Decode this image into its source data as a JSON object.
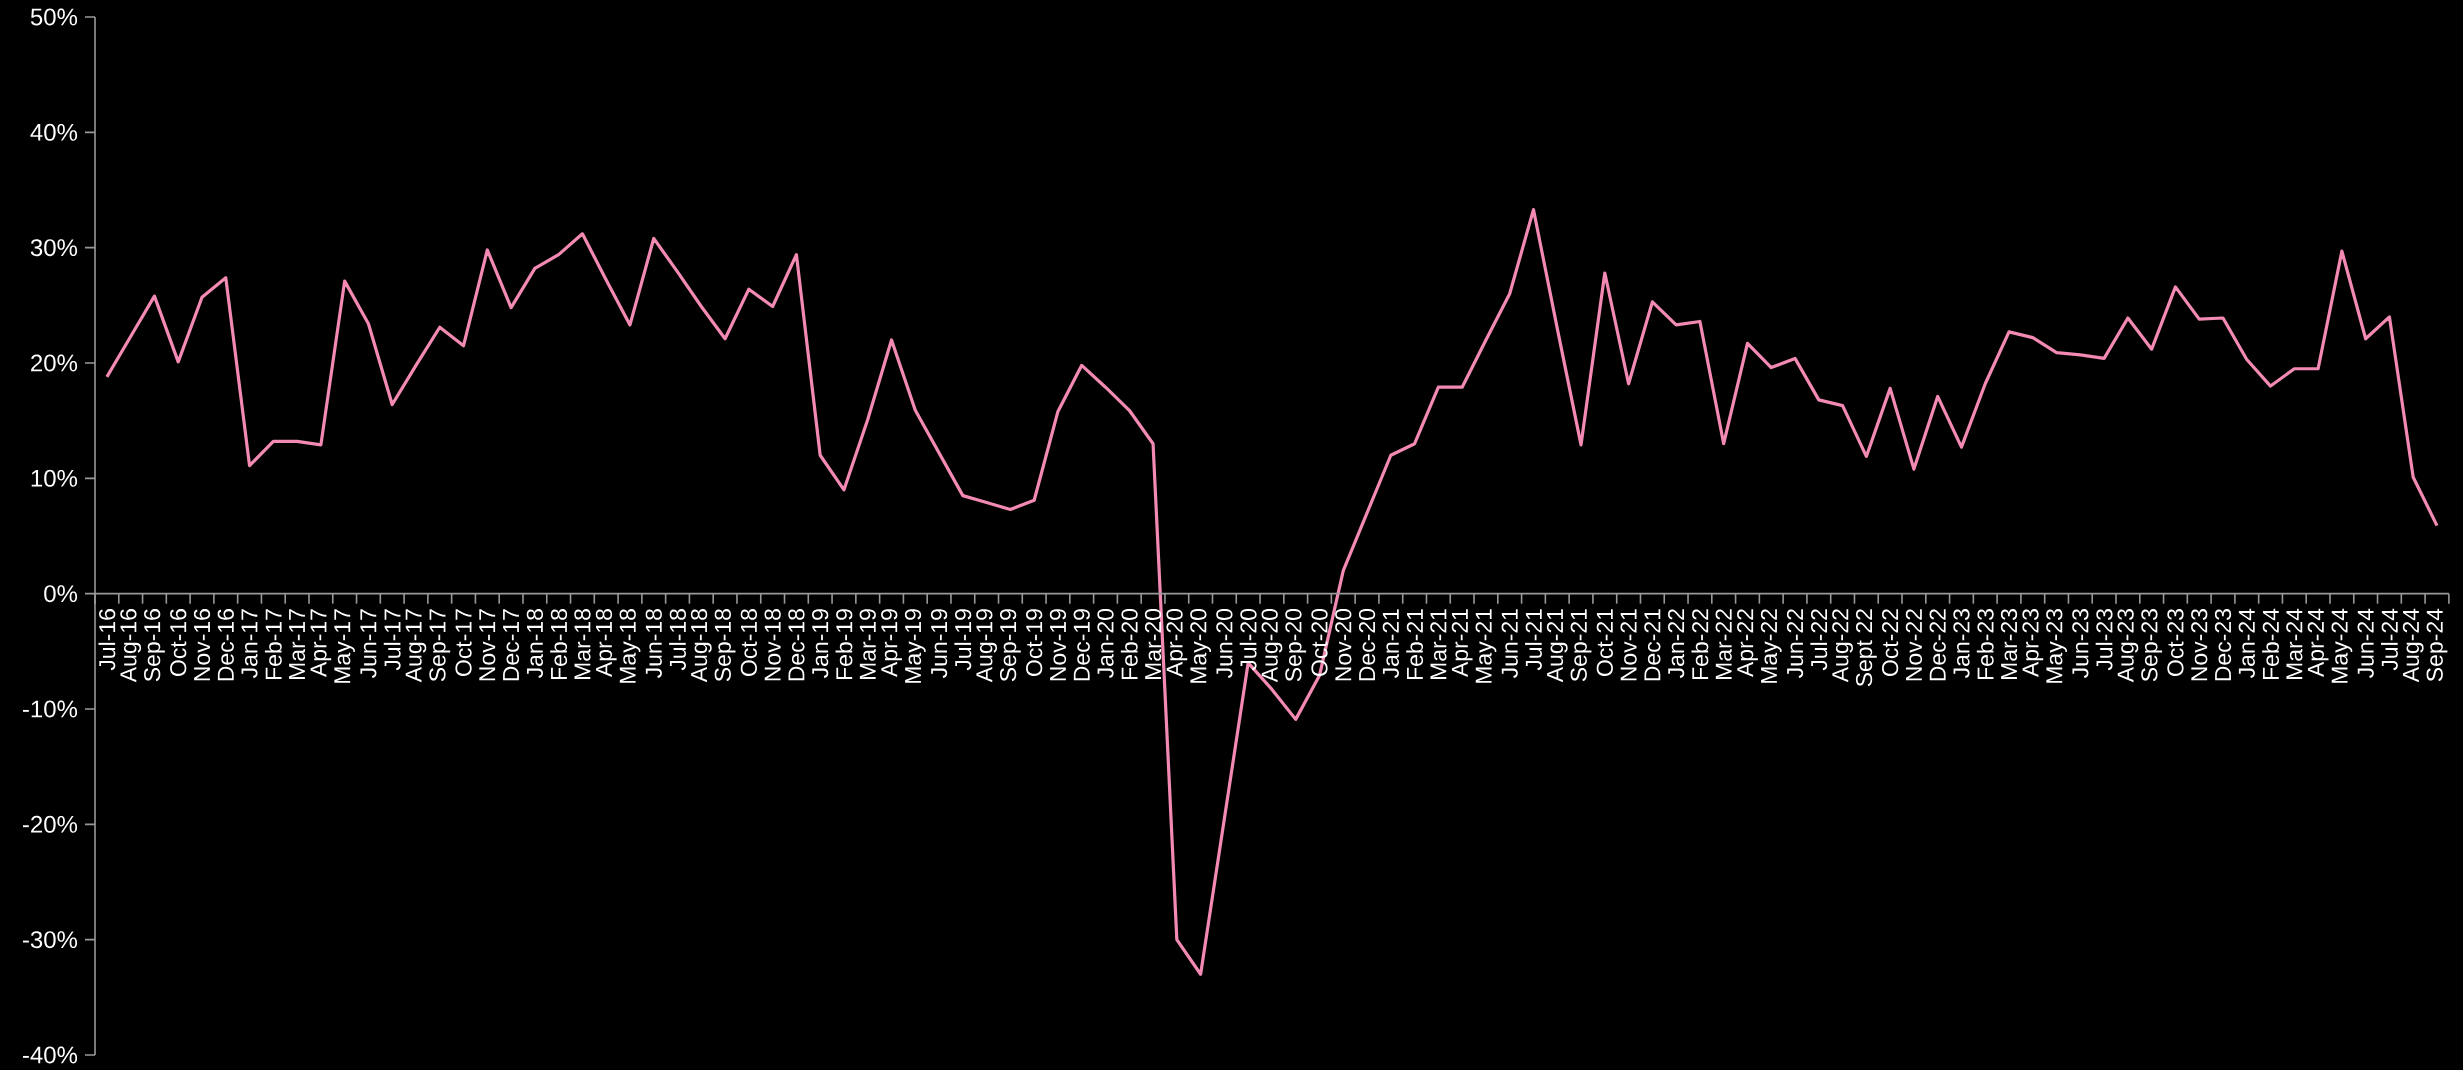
{
  "chart_data": {
    "type": "line",
    "categories": [
      "Jul-16",
      "Aug-16",
      "Sep-16",
      "Oct-16",
      "Nov-16",
      "Dec-16",
      "Jan-17",
      "Feb-17",
      "Mar-17",
      "Apr-17",
      "May-17",
      "Jun-17",
      "Jul-17",
      "Aug-17",
      "Sep-17",
      "Oct-17",
      "Nov-17",
      "Dec-17",
      "Jan-18",
      "Feb-18",
      "Mar-18",
      "Apr-18",
      "May-18",
      "Jun-18",
      "Jul-18",
      "Aug-18",
      "Sep-18",
      "Oct-18",
      "Nov-18",
      "Dec-18",
      "Jan-19",
      "Feb-19",
      "Mar-19",
      "Apr-19",
      "May-19",
      "Jun-19",
      "Jul-19",
      "Aug-19",
      "Sep-19",
      "Oct-19",
      "Nov-19",
      "Dec-19",
      "Jan-20",
      "Feb-20",
      "Mar-20",
      "Apr-20",
      "May-20",
      "Jun-20",
      "Jul-20",
      "Aug-20",
      "Sep-20",
      "Oct-20",
      "Nov-20",
      "Dec-20",
      "Jan-21",
      "Feb-21",
      "Mar-21",
      "Apr-21",
      "May-21",
      "Jun-21",
      "Jul-21",
      "Aug-21",
      "Sep-21",
      "Oct-21",
      "Nov-21",
      "Dec-21",
      "Jan-22",
      "Feb-22",
      "Mar-22",
      "Apr-22",
      "May-22",
      "Jun-22",
      "Jul-22",
      "Aug-22",
      "Sept 22",
      "Oct-22",
      "Nov-22",
      "Dec-22",
      "Jan-23",
      "Feb-23",
      "Mar-23",
      "Apr-23",
      "May-23",
      "Jun-23",
      "Jul-23",
      "Aug-23",
      "Sep-23",
      "Oct-23",
      "Nov-23",
      "Dec-23",
      "Jan-24",
      "Feb-24",
      "Mar-24",
      "Apr-24",
      "May-24",
      "Jun-24",
      "Jul-24",
      "Aug-24",
      "Sep-24"
    ],
    "series": [
      {
        "color": "#f38ab3",
        "values": [
          18.8,
          22.3,
          25.8,
          20.1,
          25.7,
          27.4,
          11.1,
          13.2,
          13.2,
          12.9,
          27.1,
          23.4,
          16.4,
          19.8,
          23.1,
          21.5,
          29.8,
          24.8,
          28.2,
          29.4,
          31.2,
          27.2,
          23.3,
          30.8,
          27.9,
          24.9,
          22.1,
          26.4,
          24.9,
          29.4,
          12.0,
          9.0,
          15.1,
          22.0,
          15.9,
          12.2,
          8.5,
          7.9,
          7.3,
          8.1,
          15.8,
          19.8,
          17.9,
          15.9,
          13.0,
          -30.0,
          -33.0,
          -19.5,
          -6.0,
          -8.3,
          -10.9,
          -7.1,
          2.0,
          7.0,
          12.0,
          13.0,
          17.9,
          17.9,
          22.0,
          26.0,
          33.3,
          23.0,
          12.9,
          27.8,
          18.2,
          25.3,
          23.3,
          23.6,
          13.0,
          21.7,
          19.6,
          20.4,
          16.8,
          16.3,
          11.9,
          17.8,
          10.8,
          17.1,
          12.7,
          18.2,
          22.7,
          22.2,
          20.9,
          20.7,
          20.4,
          23.9,
          21.2,
          26.6,
          23.8,
          23.9,
          20.3,
          18.0,
          19.5,
          19.5,
          29.7,
          22.1,
          24.0,
          10.1,
          5.9
        ]
      }
    ],
    "ylim": [
      -40,
      50
    ],
    "yticks": [
      {
        "value": -40,
        "label": "-40%"
      },
      {
        "value": -30,
        "label": "-30%"
      },
      {
        "value": -20,
        "label": "-20%"
      },
      {
        "value": -10,
        "label": "-10%"
      },
      {
        "value": 0,
        "label": "0%"
      },
      {
        "value": 10,
        "label": "10%"
      },
      {
        "value": 20,
        "label": "20%"
      },
      {
        "value": 30,
        "label": "30%"
      },
      {
        "value": 40,
        "label": "40%"
      },
      {
        "value": 50,
        "label": "50%"
      }
    ],
    "line_style": "solid"
  }
}
